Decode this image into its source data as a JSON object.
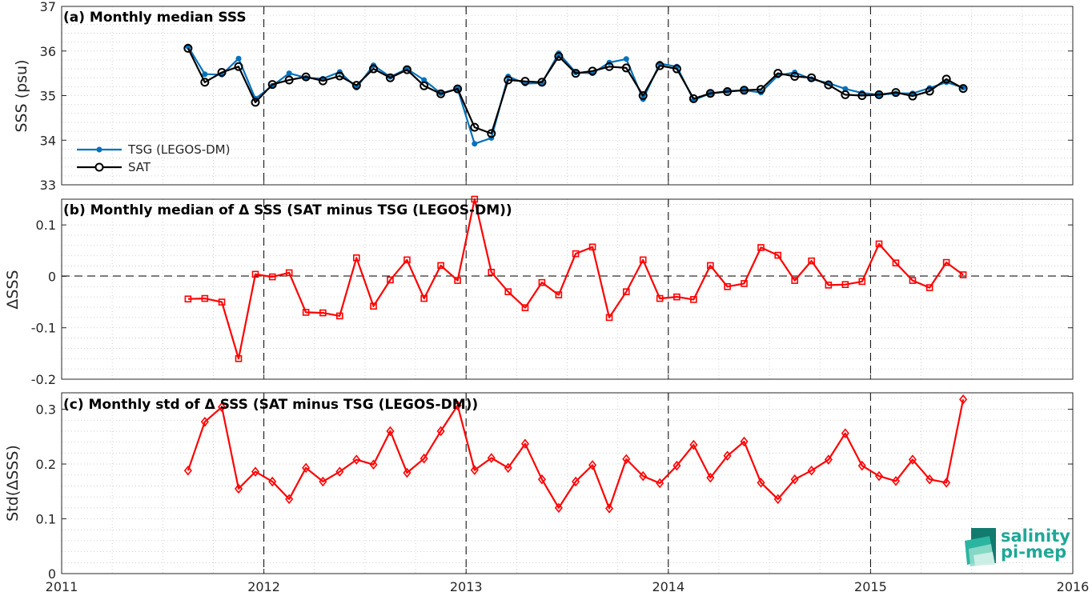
{
  "figure": {
    "logo": {
      "line1": "salinity",
      "line2": "pi-mep"
    }
  },
  "chart_data": [
    {
      "type": "line",
      "title": "(a) Monthly median SSS",
      "ylabel": "SSS (psu)",
      "xlim": [
        2011,
        2016
      ],
      "ylim": [
        33,
        37
      ],
      "yticks": [
        33,
        34,
        35,
        36,
        37
      ],
      "ytick_labels": [
        "33",
        "34",
        "35",
        "36",
        "37"
      ],
      "xticks": [
        2011,
        2012,
        2013,
        2014,
        2015,
        2016
      ],
      "xtick_labels": [],
      "grid": "dotted minor",
      "year_dividers": [
        2012,
        2013,
        2014,
        2015
      ],
      "legend_position": "bottom-left",
      "x": [
        2011.625,
        2011.708,
        2011.792,
        2011.875,
        2011.958,
        2012.042,
        2012.125,
        2012.208,
        2012.292,
        2012.375,
        2012.458,
        2012.542,
        2012.625,
        2012.708,
        2012.792,
        2012.875,
        2012.958,
        2013.042,
        2013.125,
        2013.208,
        2013.292,
        2013.375,
        2013.458,
        2013.542,
        2013.625,
        2013.708,
        2013.792,
        2013.875,
        2013.958,
        2014.042,
        2014.125,
        2014.208,
        2014.292,
        2014.375,
        2014.458,
        2014.542,
        2014.625,
        2014.708,
        2014.792,
        2014.875,
        2014.958,
        2015.042,
        2015.125,
        2015.208,
        2015.292,
        2015.375,
        2015.458
      ],
      "series": [
        {
          "name": "TSG (LEGOS-DM)",
          "color": "#0072bd",
          "marker": "dot",
          "values": [
            36.1,
            35.48,
            35.47,
            35.83,
            34.93,
            35.22,
            35.5,
            35.4,
            35.38,
            35.53,
            35.18,
            35.68,
            35.42,
            35.6,
            35.35,
            35.05,
            35.15,
            33.92,
            34.05,
            35.43,
            35.27,
            35.28,
            35.95,
            35.52,
            35.5,
            35.74,
            35.82,
            34.92,
            35.72,
            35.65,
            34.9,
            35.05,
            35.1,
            35.12,
            35.07,
            35.45,
            35.52,
            35.37,
            35.28,
            35.15,
            35.06,
            35.02,
            35.05,
            35.05,
            35.17,
            35.3,
            35.18
          ]
        },
        {
          "name": "SAT",
          "color": "#000000",
          "marker": "circle",
          "values": [
            36.06,
            35.3,
            35.52,
            35.65,
            34.85,
            35.25,
            35.35,
            35.42,
            35.33,
            35.44,
            35.23,
            35.6,
            35.4,
            35.58,
            35.22,
            35.04,
            35.15,
            34.29,
            34.15,
            35.35,
            35.32,
            35.3,
            35.88,
            35.5,
            35.55,
            35.65,
            35.62,
            35.0,
            35.67,
            35.6,
            34.93,
            35.05,
            35.09,
            35.12,
            35.14,
            35.5,
            35.43,
            35.4,
            35.24,
            35.02,
            35.0,
            35.02,
            35.07,
            34.99,
            35.1,
            35.37,
            35.16
          ]
        }
      ]
    },
    {
      "type": "line",
      "title": "(b) Monthly median of Δ SSS (SAT minus TSG (LEGOS-DM))",
      "ylabel": "ΔSSS",
      "xlim": [
        2011,
        2016
      ],
      "ylim": [
        -0.2,
        0.15
      ],
      "yticks": [
        -0.2,
        -0.1,
        0,
        0.1
      ],
      "ytick_labels": [
        "-0.2",
        "-0.1",
        "0",
        "0.1"
      ],
      "xticks": [
        2011,
        2012,
        2013,
        2014,
        2015,
        2016
      ],
      "xtick_labels": [],
      "grid": "dotted minor",
      "year_dividers": [
        2012,
        2013,
        2014,
        2015
      ],
      "reference_line": 0,
      "x": [
        2011.625,
        2011.708,
        2011.792,
        2011.875,
        2011.958,
        2012.042,
        2012.125,
        2012.208,
        2012.292,
        2012.375,
        2012.458,
        2012.542,
        2012.625,
        2012.708,
        2012.792,
        2012.875,
        2012.958,
        2013.042,
        2013.125,
        2013.208,
        2013.292,
        2013.375,
        2013.458,
        2013.542,
        2013.625,
        2013.708,
        2013.792,
        2013.875,
        2013.958,
        2014.042,
        2014.125,
        2014.208,
        2014.292,
        2014.375,
        2014.458,
        2014.542,
        2014.625,
        2014.708,
        2014.792,
        2014.875,
        2014.958,
        2015.042,
        2015.125,
        2015.208,
        2015.292,
        2015.375,
        2015.458
      ],
      "series": [
        {
          "color": "#ff0000",
          "marker": "square",
          "values": [
            -0.044,
            -0.043,
            -0.05,
            -0.16,
            0.004,
            -0.001,
            0.007,
            -0.07,
            -0.071,
            -0.077,
            0.036,
            -0.058,
            -0.007,
            0.032,
            -0.043,
            0.021,
            -0.008,
            0.15,
            0.008,
            -0.03,
            -0.061,
            -0.012,
            -0.036,
            0.044,
            0.057,
            -0.08,
            -0.03,
            0.032,
            -0.043,
            -0.04,
            -0.045,
            0.021,
            -0.02,
            -0.014,
            0.056,
            0.041,
            -0.008,
            0.03,
            -0.017,
            -0.016,
            -0.01,
            0.063,
            0.026,
            -0.008,
            -0.022,
            0.027,
            0.003
          ]
        }
      ]
    },
    {
      "type": "line",
      "title": "(c) Monthly std of Δ SSS (SAT minus TSG (LEGOS-DM))",
      "ylabel": "Std(ΔSSS)",
      "xlim": [
        2011,
        2016
      ],
      "ylim": [
        0,
        0.33
      ],
      "yticks": [
        0,
        0.1,
        0.2,
        0.3
      ],
      "ytick_labels": [
        "0",
        "0.1",
        "0.2",
        "0.3"
      ],
      "xticks": [
        2011,
        2012,
        2013,
        2014,
        2015,
        2016
      ],
      "xtick_labels": [
        "2011",
        "2012",
        "2013",
        "2014",
        "2015",
        "2016"
      ],
      "grid": "dotted minor",
      "year_dividers": [
        2012,
        2013,
        2014,
        2015
      ],
      "x": [
        2011.625,
        2011.708,
        2011.792,
        2011.875,
        2011.958,
        2012.042,
        2012.125,
        2012.208,
        2012.292,
        2012.375,
        2012.458,
        2012.542,
        2012.625,
        2012.708,
        2012.792,
        2012.875,
        2012.958,
        2013.042,
        2013.125,
        2013.208,
        2013.292,
        2013.375,
        2013.458,
        2013.542,
        2013.625,
        2013.708,
        2013.792,
        2013.875,
        2013.958,
        2014.042,
        2014.125,
        2014.208,
        2014.292,
        2014.375,
        2014.458,
        2014.542,
        2014.625,
        2014.708,
        2014.792,
        2014.875,
        2014.958,
        2015.042,
        2015.125,
        2015.208,
        2015.292,
        2015.375,
        2015.458
      ],
      "series": [
        {
          "color": "#ff0000",
          "marker": "diamond",
          "values": [
            0.188,
            0.277,
            0.304,
            0.155,
            0.186,
            0.168,
            0.136,
            0.193,
            0.168,
            0.186,
            0.208,
            0.199,
            0.26,
            0.184,
            0.21,
            0.26,
            0.307,
            0.189,
            0.211,
            0.193,
            0.237,
            0.172,
            0.12,
            0.168,
            0.198,
            0.119,
            0.209,
            0.178,
            0.165,
            0.197,
            0.235,
            0.175,
            0.215,
            0.241,
            0.166,
            0.136,
            0.172,
            0.188,
            0.208,
            0.256,
            0.197,
            0.178,
            0.169,
            0.208,
            0.172,
            0.166,
            0.318
          ]
        }
      ]
    }
  ]
}
